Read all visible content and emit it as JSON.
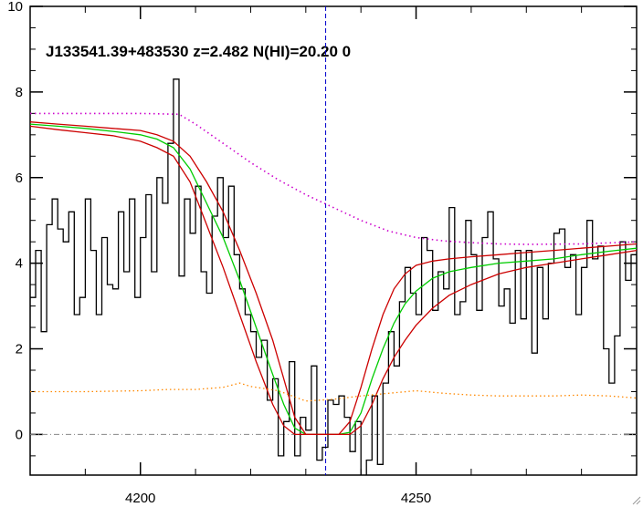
{
  "chart_data": {
    "type": "line",
    "title": "J133541.39+483530 z=2.482 N(HI)=20.20 0",
    "xlabel": "",
    "ylabel": "",
    "xlim": [
      4180,
      4290
    ],
    "ylim": [
      -0.95,
      10
    ],
    "x_ticks": [
      4200,
      4250
    ],
    "y_ticks": [
      0,
      2,
      4,
      6,
      8,
      10
    ],
    "grid": false,
    "legend": "none",
    "reference_line_x": 4233.6,
    "zero_line_y": 0,
    "colors": {
      "flux": "#000000",
      "fit": "#00cc00",
      "fit_bounds": "#cc0000",
      "continuum": "#cc00cc",
      "error": "#ff8800",
      "reference_line": "#0000cc",
      "zero_line": "#888888"
    },
    "series": [
      {
        "role": "flux",
        "style": "step",
        "x": [
          4180,
          4181,
          4182,
          4183,
          4184,
          4185,
          4186,
          4187,
          4188,
          4189,
          4190,
          4191,
          4192,
          4193,
          4194,
          4195,
          4196,
          4197,
          4198,
          4199,
          4200,
          4201,
          4202,
          4203,
          4204,
          4205,
          4206,
          4207,
          4208,
          4209,
          4210,
          4211,
          4212,
          4213,
          4214,
          4215,
          4216,
          4217,
          4218,
          4219,
          4220,
          4221,
          4222,
          4223,
          4224,
          4225,
          4226,
          4227,
          4228,
          4229,
          4230,
          4231,
          4232,
          4233,
          4234,
          4235,
          4236,
          4237,
          4238,
          4239,
          4240,
          4241,
          4242,
          4243,
          4244,
          4245,
          4246,
          4247,
          4248,
          4249,
          4250,
          4251,
          4252,
          4253,
          4254,
          4255,
          4256,
          4257,
          4258,
          4259,
          4260,
          4261,
          4262,
          4263,
          4264,
          4265,
          4266,
          4267,
          4268,
          4269,
          4270,
          4271,
          4272,
          4273,
          4274,
          4275,
          4276,
          4277,
          4278,
          4279,
          4280,
          4281,
          4282,
          4283,
          4284,
          4285,
          4286,
          4287,
          4288,
          4289
        ],
        "values": [
          3.2,
          4.3,
          2.4,
          4.9,
          5.5,
          4.8,
          4.5,
          5.2,
          2.8,
          3.2,
          5.5,
          4.3,
          2.8,
          4.6,
          3.5,
          3.4,
          5.2,
          3.8,
          5.5,
          3.2,
          4.6,
          5.6,
          3.8,
          6.0,
          5.4,
          6.8,
          8.3,
          3.7,
          5.5,
          4.7,
          5.8,
          3.8,
          3.3,
          5.1,
          6.0,
          4.6,
          5.8,
          4.2,
          3.4,
          2.8,
          2.4,
          1.8,
          2.2,
          0.8,
          1.3,
          -0.5,
          0.3,
          1.7,
          -0.5,
          0.4,
          0.1,
          1.6,
          -0.6,
          -0.3,
          0.8,
          0.7,
          0.9,
          0.4,
          -0.4,
          0.3,
          -1.0,
          -0.6,
          0.9,
          -0.7,
          1.2,
          2.4,
          1.6,
          3.1,
          3.9,
          3.3,
          2.8,
          4.6,
          4.3,
          2.9,
          3.8,
          3.4,
          5.3,
          2.8,
          3.1,
          5.0,
          4.2,
          2.9,
          4.6,
          5.2,
          4.1,
          3.0,
          3.4,
          2.6,
          4.3,
          2.7,
          4.3,
          1.9,
          3.9,
          2.7,
          4.0,
          4.7,
          4.8,
          3.9,
          4.2,
          2.8,
          3.9,
          5.0,
          4.1,
          4.4,
          2.0,
          1.2,
          2.3,
          4.5,
          3.6,
          4.2
        ]
      },
      {
        "role": "fit",
        "style": "line",
        "x": [
          4180,
          4185,
          4190,
          4195,
          4200,
          4203,
          4206,
          4209,
          4212,
          4215,
          4218,
          4221,
          4224,
          4226,
          4228,
          4230,
          4232,
          4234,
          4236,
          4238,
          4240,
          4242,
          4244,
          4246,
          4248,
          4250,
          4253,
          4256,
          4260,
          4265,
          4270,
          4275,
          4280,
          4285,
          4290
        ],
        "values": [
          7.25,
          7.2,
          7.15,
          7.08,
          7.0,
          6.9,
          6.7,
          6.2,
          5.4,
          4.6,
          3.6,
          2.5,
          1.4,
          0.7,
          0.15,
          0.0,
          0.0,
          0.0,
          0.0,
          0.05,
          0.5,
          1.3,
          2.0,
          2.6,
          3.05,
          3.35,
          3.65,
          3.8,
          3.9,
          4.0,
          4.05,
          4.1,
          4.2,
          4.28,
          4.35
        ]
      },
      {
        "role": "fit_upper",
        "style": "line",
        "x": [
          4180,
          4185,
          4190,
          4195,
          4200,
          4203,
          4206,
          4209,
          4212,
          4215,
          4218,
          4221,
          4224,
          4226,
          4228,
          4230,
          4232,
          4234,
          4236,
          4238,
          4240,
          4242,
          4244,
          4246,
          4248,
          4250,
          4253,
          4256,
          4260,
          4265,
          4270,
          4275,
          4280,
          4285,
          4290
        ],
        "values": [
          7.3,
          7.25,
          7.2,
          7.15,
          7.1,
          7.0,
          6.85,
          6.5,
          5.9,
          5.2,
          4.3,
          3.3,
          2.2,
          1.3,
          0.4,
          0.0,
          0.0,
          0.0,
          0.0,
          0.3,
          1.1,
          2.0,
          2.8,
          3.4,
          3.75,
          3.95,
          4.05,
          4.1,
          4.15,
          4.2,
          4.25,
          4.3,
          4.35,
          4.4,
          4.45
        ]
      },
      {
        "role": "fit_lower",
        "style": "line",
        "x": [
          4180,
          4185,
          4190,
          4195,
          4200,
          4203,
          4206,
          4209,
          4212,
          4215,
          4218,
          4221,
          4224,
          4226,
          4228,
          4230,
          4232,
          4234,
          4236,
          4238,
          4240,
          4242,
          4244,
          4246,
          4248,
          4250,
          4253,
          4256,
          4260,
          4265,
          4270,
          4275,
          4280,
          4285,
          4290
        ],
        "values": [
          7.2,
          7.12,
          7.05,
          6.98,
          6.85,
          6.7,
          6.5,
          5.9,
          4.9,
          3.9,
          2.8,
          1.7,
          0.7,
          0.2,
          0.0,
          0.0,
          0.0,
          0.0,
          0.0,
          0.0,
          0.2,
          0.7,
          1.3,
          1.8,
          2.2,
          2.55,
          2.95,
          3.25,
          3.5,
          3.75,
          3.9,
          4.0,
          4.1,
          4.2,
          4.3
        ]
      },
      {
        "role": "continuum",
        "style": "dotted",
        "x": [
          4180,
          4190,
          4200,
          4207,
          4210,
          4215,
          4220,
          4225,
          4230,
          4235,
          4240,
          4245,
          4250,
          4255,
          4260,
          4265,
          4270,
          4280,
          4290
        ],
        "values": [
          7.5,
          7.5,
          7.5,
          7.48,
          7.25,
          6.8,
          6.35,
          5.95,
          5.6,
          5.3,
          5.0,
          4.75,
          4.6,
          4.52,
          4.48,
          4.45,
          4.44,
          4.45,
          4.5
        ]
      },
      {
        "role": "error",
        "style": "dotted",
        "x": [
          4180,
          4190,
          4200,
          4205,
          4210,
          4215,
          4218,
          4220,
          4225,
          4230,
          4235,
          4240,
          4245,
          4250,
          4255,
          4260,
          4265,
          4270,
          4275,
          4280,
          4285,
          4290
        ],
        "values": [
          1.0,
          1.0,
          1.02,
          1.05,
          1.05,
          1.1,
          1.2,
          1.12,
          1.02,
          0.78,
          0.82,
          0.9,
          0.96,
          1.02,
          0.96,
          0.92,
          0.9,
          0.9,
          0.9,
          0.92,
          0.9,
          0.85
        ]
      }
    ]
  }
}
